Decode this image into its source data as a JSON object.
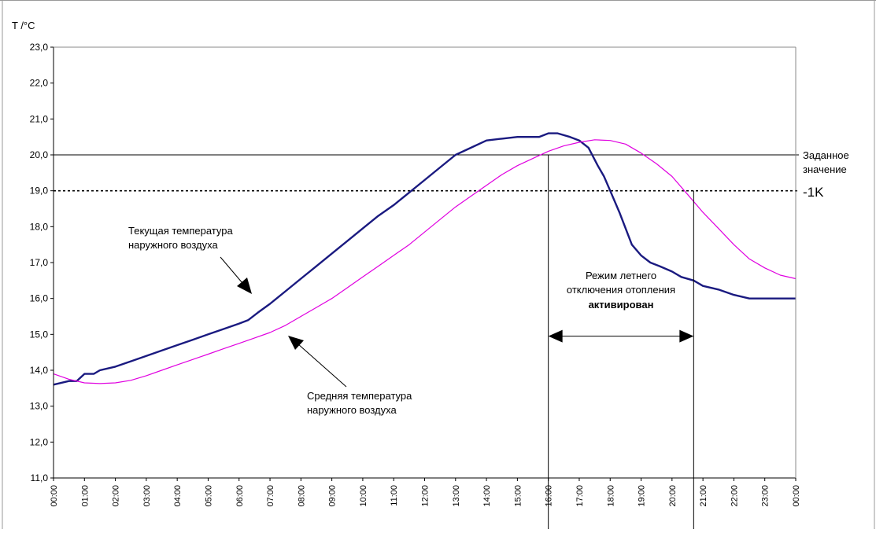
{
  "chart_data": {
    "type": "line",
    "ylabel": "T /°C",
    "ylim": [
      11,
      23
    ],
    "ytick_step": 1,
    "ytick_labels": [
      "11,0",
      "12,0",
      "13,0",
      "14,0",
      "15,0",
      "16,0",
      "17,0",
      "18,0",
      "19,0",
      "20,0",
      "21,0",
      "22,0",
      "23,0"
    ],
    "x_ticks": [
      "00:00",
      "01:00",
      "02:00",
      "03:00",
      "04:00",
      "05:00",
      "06:00",
      "07:00",
      "08:00",
      "09:00",
      "10:00",
      "11:00",
      "12:00",
      "13:00",
      "14:00",
      "15:00",
      "16:00",
      "17:00",
      "18:00",
      "19:00",
      "20:00",
      "21:00",
      "22:00",
      "23:00",
      "00:00"
    ],
    "xlim_hours": [
      0,
      24
    ],
    "grid": "horizontal",
    "series": [
      {
        "color": "#1a1a80",
        "x": [
          0,
          0.5,
          0.75,
          1,
          1.3,
          1.5,
          2,
          2.5,
          3,
          3.5,
          4,
          4.5,
          5,
          5.5,
          6,
          6.3,
          6.6,
          7,
          7.5,
          8,
          8.5,
          9,
          9.5,
          10,
          10.5,
          11,
          11.5,
          12,
          12.5,
          13,
          13.5,
          14,
          14.5,
          15,
          15.3,
          15.7,
          16,
          16.3,
          16.7,
          17,
          17.3,
          17.6,
          17.8,
          18,
          18.3,
          18.7,
          19,
          19.3,
          19.6,
          20,
          20.3,
          20.7,
          21,
          21.5,
          22,
          22.5,
          23,
          23.5,
          24
        ],
        "y": [
          13.6,
          13.7,
          13.7,
          13.9,
          13.9,
          14,
          14.1,
          14.25,
          14.4,
          14.55,
          14.7,
          14.85,
          15,
          15.15,
          15.3,
          15.4,
          15.6,
          15.85,
          16.2,
          16.55,
          16.9,
          17.25,
          17.6,
          17.95,
          18.3,
          18.6,
          18.95,
          19.3,
          19.65,
          20,
          20.2,
          20.4,
          20.45,
          20.5,
          20.5,
          20.5,
          20.6,
          20.6,
          20.5,
          20.4,
          20.2,
          19.7,
          19.4,
          19,
          18.4,
          17.5,
          17.2,
          17,
          16.9,
          16.75,
          16.6,
          16.5,
          16.35,
          16.25,
          16.1,
          16,
          16,
          16,
          16
        ]
      },
      {
        "color": "#e000e0",
        "x": [
          0,
          0.5,
          1,
          1.5,
          2,
          2.5,
          3,
          3.5,
          4,
          4.5,
          5,
          5.5,
          6,
          6.5,
          7,
          7.5,
          8,
          8.5,
          9,
          9.5,
          10,
          10.5,
          11,
          11.5,
          12,
          12.5,
          13,
          13.5,
          14,
          14.5,
          15,
          15.5,
          16,
          16.5,
          17,
          17.5,
          18,
          18.5,
          19,
          19.5,
          20,
          20.5,
          21,
          21.5,
          22,
          22.5,
          23,
          23.5,
          24
        ],
        "y": [
          13.9,
          13.75,
          13.65,
          13.63,
          13.65,
          13.72,
          13.85,
          14,
          14.15,
          14.3,
          14.45,
          14.6,
          14.75,
          14.9,
          15.05,
          15.25,
          15.5,
          15.75,
          16,
          16.3,
          16.6,
          16.9,
          17.2,
          17.5,
          17.85,
          18.2,
          18.55,
          18.85,
          19.15,
          19.45,
          19.7,
          19.9,
          20.1,
          20.25,
          20.35,
          20.42,
          20.4,
          20.3,
          20.05,
          19.75,
          19.4,
          18.9,
          18.4,
          17.95,
          17.5,
          17.1,
          16.85,
          16.65,
          16.55
        ]
      }
    ],
    "reference_lines": [
      {
        "y": 20,
        "style": "solid",
        "label": "Заданное значение"
      },
      {
        "y": 19,
        "style": "dotted",
        "label": "-1K"
      }
    ],
    "vertical_markers_hours": [
      16,
      20.7
    ],
    "annotations": {
      "current_temp": [
        "Текущая температура",
        "наружного воздуха"
      ],
      "avg_temp": [
        "Средняя температура",
        "наружного воздуха"
      ],
      "mode": [
        "Режим летнего",
        "отключения отопления"
      ],
      "mode_bold": "активирован"
    }
  }
}
